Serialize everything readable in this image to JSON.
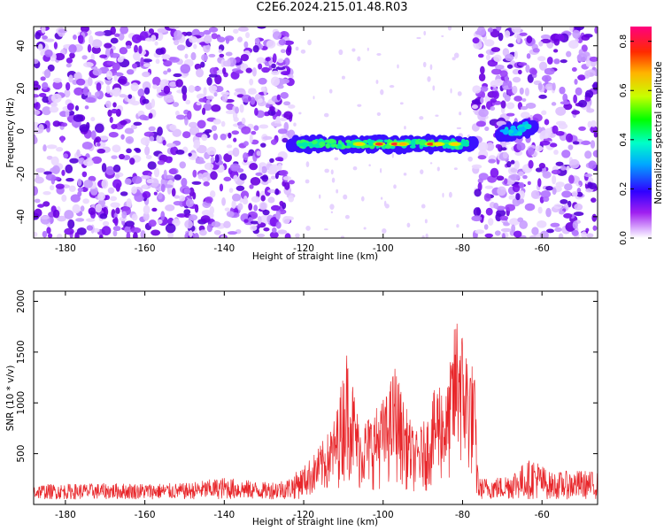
{
  "title": "C2E6.2024.215.01.48.R03",
  "colors": {
    "snr_line": "#e8262a",
    "spectrum_low": "#a020f0",
    "spectrum_high": "#ff0000"
  },
  "chart_data": [
    {
      "type": "heatmap",
      "title": "C2E6.2024.215.01.48.R03",
      "xlabel": "Height of straight line (km)",
      "ylabel": "Frequency (Hz)",
      "xlim": [
        -188,
        -46
      ],
      "ylim": [
        -50,
        49
      ],
      "xticks": [
        -180,
        -160,
        -140,
        -120,
        -100,
        -80,
        -60
      ],
      "yticks": [
        -40,
        -20,
        0,
        20,
        40
      ],
      "colorbar": {
        "label": "Normalized spectral amplitude",
        "range": [
          0.0,
          0.86
        ],
        "ticks": [
          0.0,
          0.2,
          0.4,
          0.6,
          0.8
        ]
      },
      "features": [
        {
          "x_range": [
            -188,
            -123
          ],
          "y_range": [
            -50,
            49
          ],
          "level": "noise",
          "amplitude": 0.04
        },
        {
          "x_range": [
            -77,
            -46
          ],
          "y_range": [
            -50,
            49
          ],
          "level": "noise",
          "amplitude": 0.04
        },
        {
          "x_range": [
            -123,
            -77
          ],
          "y_center": -6,
          "y_halfwidth": 3,
          "level": "echo",
          "amplitude_peak": 0.86
        },
        {
          "x_range": [
            -71,
            -62
          ],
          "y_center": -2,
          "y_halfwidth": 4,
          "level": "echo",
          "amplitude_peak": 0.3
        }
      ]
    },
    {
      "type": "line",
      "xlabel": "Height of straight line (km)",
      "ylabel": "SNR (10 * v/v)",
      "xlim": [
        -188,
        -46
      ],
      "ylim": [
        0,
        2100
      ],
      "xticks": [
        -180,
        -160,
        -140,
        -120,
        -100,
        -80,
        -60
      ],
      "yticks": [
        500,
        1000,
        1500,
        2000
      ],
      "series": [
        {
          "color": "#e8262a",
          "envelope_points": [
            {
              "x": -188,
              "y": 200
            },
            {
              "x": -170,
              "y": 210
            },
            {
              "x": -150,
              "y": 210
            },
            {
              "x": -140,
              "y": 270
            },
            {
              "x": -130,
              "y": 220
            },
            {
              "x": -124,
              "y": 260
            },
            {
              "x": -120,
              "y": 380
            },
            {
              "x": -117,
              "y": 520
            },
            {
              "x": -114,
              "y": 700
            },
            {
              "x": -112,
              "y": 880
            },
            {
              "x": -109,
              "y": 1570
            },
            {
              "x": -106,
              "y": 820
            },
            {
              "x": -103,
              "y": 900
            },
            {
              "x": -101,
              "y": 1000
            },
            {
              "x": -99,
              "y": 1100
            },
            {
              "x": -97,
              "y": 1400
            },
            {
              "x": -95,
              "y": 1050
            },
            {
              "x": -92,
              "y": 700
            },
            {
              "x": -89,
              "y": 860
            },
            {
              "x": -86,
              "y": 1280
            },
            {
              "x": -84,
              "y": 1120
            },
            {
              "x": -81,
              "y": 2100
            },
            {
              "x": -80,
              "y": 1700
            },
            {
              "x": -78,
              "y": 1480
            },
            {
              "x": -77,
              "y": 1300
            },
            {
              "x": -76,
              "y": 260
            },
            {
              "x": -70,
              "y": 280
            },
            {
              "x": -62,
              "y": 470
            },
            {
              "x": -58,
              "y": 320
            },
            {
              "x": -50,
              "y": 340
            },
            {
              "x": -46,
              "y": 320
            }
          ]
        }
      ]
    }
  ]
}
